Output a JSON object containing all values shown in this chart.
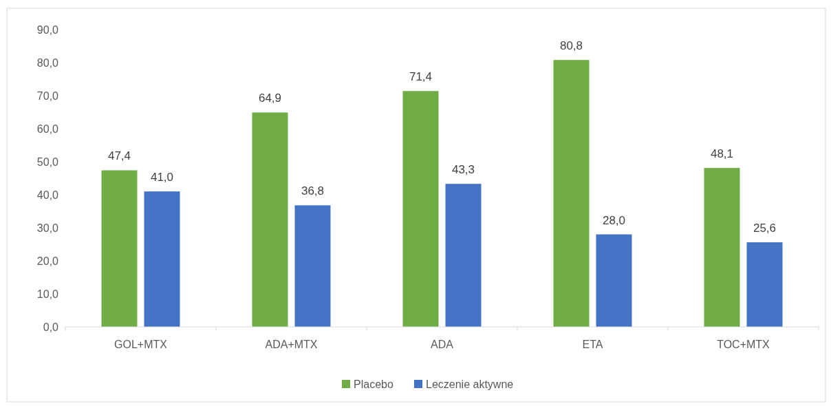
{
  "chart_data": {
    "type": "bar",
    "categories": [
      "GOL+MTX",
      "ADA+MTX",
      "ADA",
      "ETA",
      "TOC+MTX"
    ],
    "series": [
      {
        "name": "Placebo",
        "color": "#70ad47",
        "values": [
          47.4,
          64.9,
          71.4,
          80.8,
          48.1
        ],
        "value_labels": [
          "47,4",
          "64,9",
          "71,4",
          "80,8",
          "48,1"
        ]
      },
      {
        "name": "Leczenie aktywne",
        "color": "#4472c4",
        "values": [
          41.0,
          36.8,
          43.3,
          28.0,
          25.6
        ],
        "value_labels": [
          "41,0",
          "36,8",
          "43,3",
          "28,0",
          "25,6"
        ]
      }
    ],
    "ylim": [
      0,
      90
    ],
    "yticks": [
      {
        "value": 0,
        "label": "0,0"
      },
      {
        "value": 10,
        "label": "10,0"
      },
      {
        "value": 20,
        "label": "20,0"
      },
      {
        "value": 30,
        "label": "30,0"
      },
      {
        "value": 40,
        "label": "40,0"
      },
      {
        "value": 50,
        "label": "50,0"
      },
      {
        "value": 60,
        "label": "60,0"
      },
      {
        "value": 70,
        "label": "70,0"
      },
      {
        "value": 80,
        "label": "80,0"
      },
      {
        "value": 90,
        "label": "90,0"
      }
    ],
    "grid": false,
    "legend": "bottom"
  }
}
